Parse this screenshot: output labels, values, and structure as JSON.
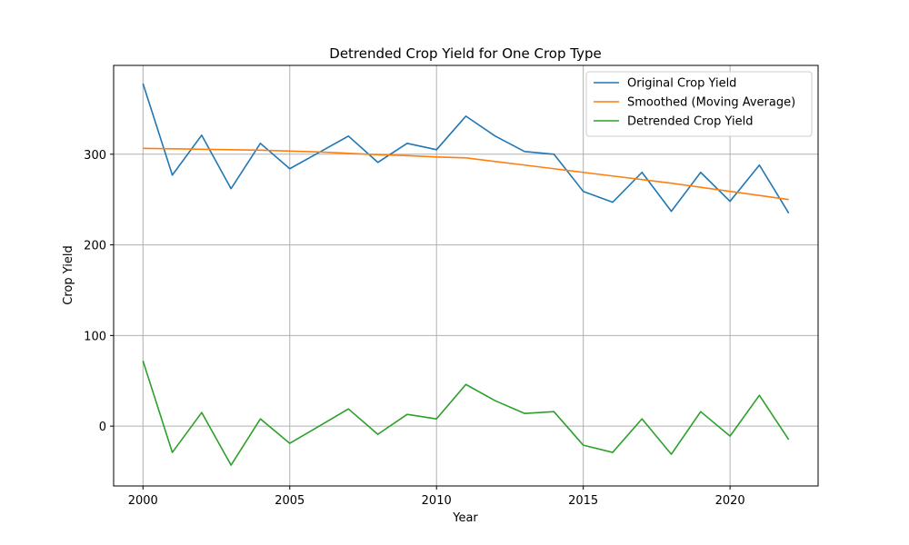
{
  "chart_data": {
    "type": "line",
    "title": "Detrended Crop Yield for One Crop Type",
    "xlabel": "Year",
    "ylabel": "Crop Yield",
    "xlim": [
      1999.0,
      2023.0
    ],
    "ylim": [
      -66,
      398
    ],
    "xticks": [
      2000,
      2005,
      2010,
      2015,
      2020
    ],
    "yticks": [
      0,
      100,
      200,
      300
    ],
    "grid": true,
    "legend_position": "top-right",
    "x": [
      2000,
      2001,
      2002,
      2003,
      2004,
      2005,
      2006,
      2007,
      2008,
      2009,
      2010,
      2011,
      2012,
      2013,
      2014,
      2015,
      2016,
      2017,
      2018,
      2019,
      2020,
      2021,
      2022
    ],
    "series": [
      {
        "name": "Original Crop Yield",
        "color": "#1f77b4",
        "values": [
          378,
          277,
          321,
          262,
          312,
          284,
          302,
          320,
          291,
          312,
          305,
          342,
          320,
          303,
          300,
          259,
          247,
          280,
          237,
          280,
          248,
          288,
          235
        ]
      },
      {
        "name": "Smoothed (Moving Average)",
        "color": "#ff7f0e",
        "values": [
          306.5,
          306.0,
          305.5,
          305.0,
          304.5,
          303.5,
          302.5,
          301.0,
          299.5,
          298.5,
          297.0,
          296.0,
          292.0,
          288.0,
          284.0,
          280.0,
          276.0,
          272.0,
          268.0,
          263.5,
          259.0,
          254.5,
          250.0
        ]
      },
      {
        "name": "Detrended Crop Yield",
        "color": "#2ca02c",
        "values": [
          72,
          -29,
          15,
          -43,
          8,
          -19,
          0,
          19,
          -9,
          13,
          8,
          46,
          28,
          14,
          16,
          -21,
          -29,
          8,
          -31,
          16,
          -11,
          34,
          -15
        ]
      }
    ]
  }
}
